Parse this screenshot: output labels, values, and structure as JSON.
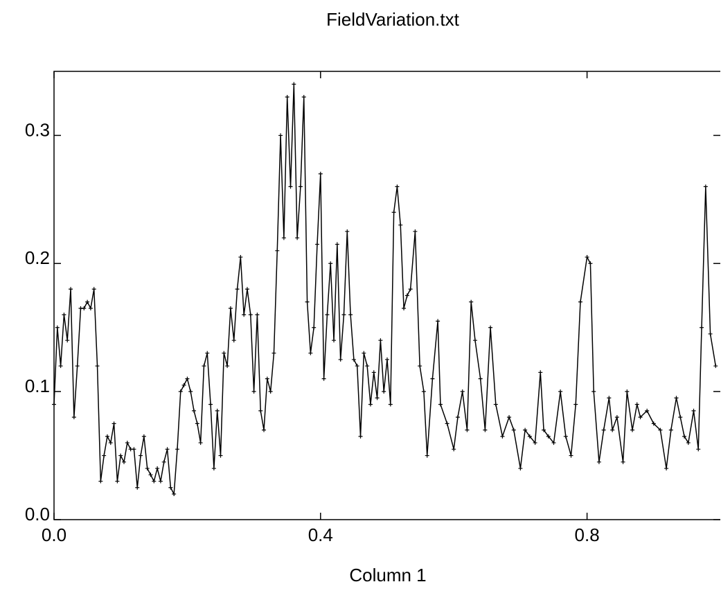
{
  "chart_data": {
    "type": "line",
    "title": "FieldVariation.txt",
    "x_label": "Column 1",
    "xlim": [
      0,
      1
    ],
    "ylim": [
      0,
      0.35
    ],
    "xticks": [
      {
        "value": 0,
        "label": "0.0"
      },
      0.4,
      0.8
    ],
    "yticks": [
      {
        "value": 0,
        "label": "0.0"
      },
      0.1,
      0.2,
      0.3
    ],
    "color": "#000000",
    "markers": true,
    "x": [
      0,
      0.005,
      0.01,
      0.015,
      0.02,
      0.025,
      0.03,
      0.035,
      0.04,
      0.045,
      0.05,
      0.055,
      0.06,
      0.065,
      0.07,
      0.075,
      0.08,
      0.085,
      0.09,
      0.095,
      0.1,
      0.105,
      0.11,
      0.115,
      0.12,
      0.125,
      0.13,
      0.135,
      0.14,
      0.145,
      0.15,
      0.155,
      0.16,
      0.165,
      0.17,
      0.175,
      0.18,
      0.185,
      0.19,
      0.195,
      0.2,
      0.205,
      0.21,
      0.215,
      0.22,
      0.225,
      0.23,
      0.235,
      0.24,
      0.245,
      0.25,
      0.255,
      0.26,
      0.265,
      0.27,
      0.275,
      0.28,
      0.285,
      0.29,
      0.295,
      0.3,
      0.305,
      0.31,
      0.315,
      0.32,
      0.325,
      0.33,
      0.335,
      0.34,
      0.345,
      0.35,
      0.355,
      0.36,
      0.365,
      0.37,
      0.375,
      0.38,
      0.385,
      0.39,
      0.395,
      0.4,
      0.405,
      0.41,
      0.415,
      0.42,
      0.425,
      0.43,
      0.435,
      0.44,
      0.445,
      0.45,
      0.455,
      0.46,
      0.465,
      0.47,
      0.475,
      0.48,
      0.485,
      0.49,
      0.495,
      0.5,
      0.505,
      0.51,
      0.515,
      0.52,
      0.525,
      0.53,
      0.535,
      0.542,
      0.549,
      0.555,
      0.56,
      0.568,
      0.576,
      0.58,
      0.59,
      0.6,
      0.606,
      0.613,
      0.62,
      0.626,
      0.632,
      0.64,
      0.647,
      0.655,
      0.663,
      0.673,
      0.683,
      0.69,
      0.7,
      0.707,
      0.714,
      0.722,
      0.73,
      0.735,
      0.742,
      0.75,
      0.76,
      0.768,
      0.776,
      0.783,
      0.79,
      0.8,
      0.805,
      0.81,
      0.818,
      0.825,
      0.833,
      0.838,
      0.845,
      0.854,
      0.86,
      0.868,
      0.875,
      0.88,
      0.89,
      0.9,
      0.91,
      0.919,
      0.926,
      0.934,
      0.94,
      0.946,
      0.952,
      0.96,
      0.967,
      0.972,
      0.978,
      0.985,
      0.993
    ],
    "values": [
      0.09,
      0.15,
      0.12,
      0.16,
      0.14,
      0.18,
      0.08,
      0.12,
      0.165,
      0.165,
      0.17,
      0.165,
      0.18,
      0.12,
      0.03,
      0.05,
      0.065,
      0.06,
      0.075,
      0.03,
      0.05,
      0.045,
      0.06,
      0.055,
      0.055,
      0.025,
      0.05,
      0.065,
      0.04,
      0.035,
      0.03,
      0.04,
      0.03,
      0.045,
      0.055,
      0.025,
      0.02,
      0.055,
      0.1,
      0.105,
      0.11,
      0.1,
      0.085,
      0.075,
      0.06,
      0.12,
      0.13,
      0.09,
      0.04,
      0.085,
      0.05,
      0.13,
      0.12,
      0.165,
      0.14,
      0.18,
      0.205,
      0.16,
      0.18,
      0.16,
      0.1,
      0.16,
      0.085,
      0.07,
      0.11,
      0.1,
      0.13,
      0.21,
      0.3,
      0.22,
      0.33,
      0.26,
      0.34,
      0.22,
      0.26,
      0.33,
      0.17,
      0.13,
      0.15,
      0.215,
      0.27,
      0.11,
      0.16,
      0.2,
      0.14,
      0.215,
      0.125,
      0.16,
      0.225,
      0.16,
      0.125,
      0.12,
      0.065,
      0.13,
      0.12,
      0.09,
      0.115,
      0.095,
      0.14,
      0.1,
      0.125,
      0.09,
      0.24,
      0.26,
      0.23,
      0.165,
      0.175,
      0.18,
      0.225,
      0.12,
      0.1,
      0.05,
      0.11,
      0.155,
      0.09,
      0.075,
      0.055,
      0.08,
      0.1,
      0.07,
      0.17,
      0.14,
      0.11,
      0.07,
      0.15,
      0.09,
      0.065,
      0.08,
      0.07,
      0.04,
      0.07,
      0.065,
      0.06,
      0.115,
      0.07,
      0.065,
      0.06,
      0.1,
      0.065,
      0.05,
      0.09,
      0.17,
      0.205,
      0.2,
      0.1,
      0.045,
      0.07,
      0.095,
      0.07,
      0.08,
      0.045,
      0.1,
      0.07,
      0.09,
      0.08,
      0.085,
      0.075,
      0.07,
      0.04,
      0.07,
      0.095,
      0.08,
      0.065,
      0.06,
      0.085,
      0.055,
      0.15,
      0.26,
      0.145,
      0.12
    ]
  }
}
